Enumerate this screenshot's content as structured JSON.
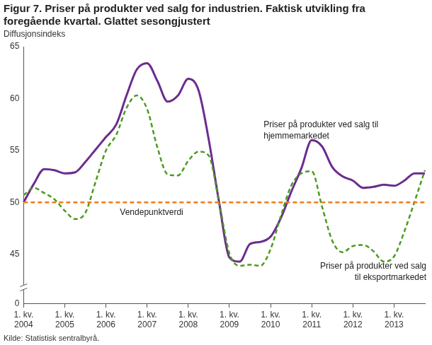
{
  "chart_data": {
    "type": "line",
    "title": "Figur 7. Priser på produkter ved salg for industrien. Faktisk utvikling fra foregående kvartal. Glattet sesongjustert",
    "y_label": "Diffusjonsindeks",
    "source": "Kilde: Statistisk sentralbyrå.",
    "categories": [
      "1. kv. 2004",
      null,
      null,
      null,
      "1. kv. 2005",
      null,
      null,
      null,
      "1. kv. 2006",
      null,
      null,
      null,
      "1. kv. 2007",
      null,
      null,
      null,
      "1. kv. 2008",
      null,
      null,
      null,
      "1. kv. 2009",
      null,
      null,
      null,
      "1. kv. 2010",
      null,
      null,
      null,
      "1. kv. 2011",
      null,
      null,
      null,
      "1. kv. 2012",
      null,
      null,
      null,
      "1. kv. 2013",
      null,
      null,
      null
    ],
    "series": [
      {
        "name": "Priser på produkter ved salg til hjemmemarkedet",
        "color": "#6b2c8f",
        "line_style": "solid",
        "values": [
          50.0,
          51.8,
          53.2,
          53.1,
          52.8,
          52.9,
          53.9,
          55.1,
          56.3,
          57.5,
          60.3,
          62.8,
          63.4,
          61.7,
          59.7,
          60.3,
          61.9,
          60.8,
          56.0,
          50.0,
          44.7,
          44.3,
          46.0,
          46.2,
          46.7,
          48.5,
          51.0,
          53.3,
          56.0,
          55.4,
          53.4,
          52.5,
          52.1,
          51.4,
          51.5,
          51.7,
          51.6,
          52.1,
          52.8,
          52.8
        ]
      },
      {
        "name": "Priser på produkter ved salg til eksportmarkedet",
        "color": "#4a9a1e",
        "line_style": "dashed",
        "values": [
          50.7,
          51.4,
          50.9,
          50.3,
          49.2,
          48.4,
          49.0,
          52.0,
          55.0,
          56.5,
          59.1,
          60.3,
          59.0,
          55.3,
          52.7,
          52.6,
          54.0,
          54.9,
          54.5,
          50.0,
          45.1,
          43.9,
          44.0,
          43.9,
          45.5,
          48.7,
          51.6,
          52.8,
          53.0,
          49.6,
          46.3,
          45.2,
          45.8,
          45.9,
          45.3,
          44.3,
          44.8,
          47.2,
          50.1,
          53.1
        ]
      },
      {
        "name": "Vendepunktverdi",
        "color": "#f07c1a",
        "line_style": "dashed",
        "values": [
          50,
          50,
          50,
          50,
          50,
          50,
          50,
          50,
          50,
          50,
          50,
          50,
          50,
          50,
          50,
          50,
          50,
          50,
          50,
          50,
          50,
          50,
          50,
          50,
          50,
          50,
          50,
          50,
          50,
          50,
          50,
          50,
          50,
          50,
          50,
          50,
          50,
          50,
          50,
          50
        ]
      }
    ],
    "ylim": [
      0,
      65
    ],
    "yticks": [
      0,
      45,
      50,
      55,
      60,
      65
    ],
    "grid": false
  }
}
